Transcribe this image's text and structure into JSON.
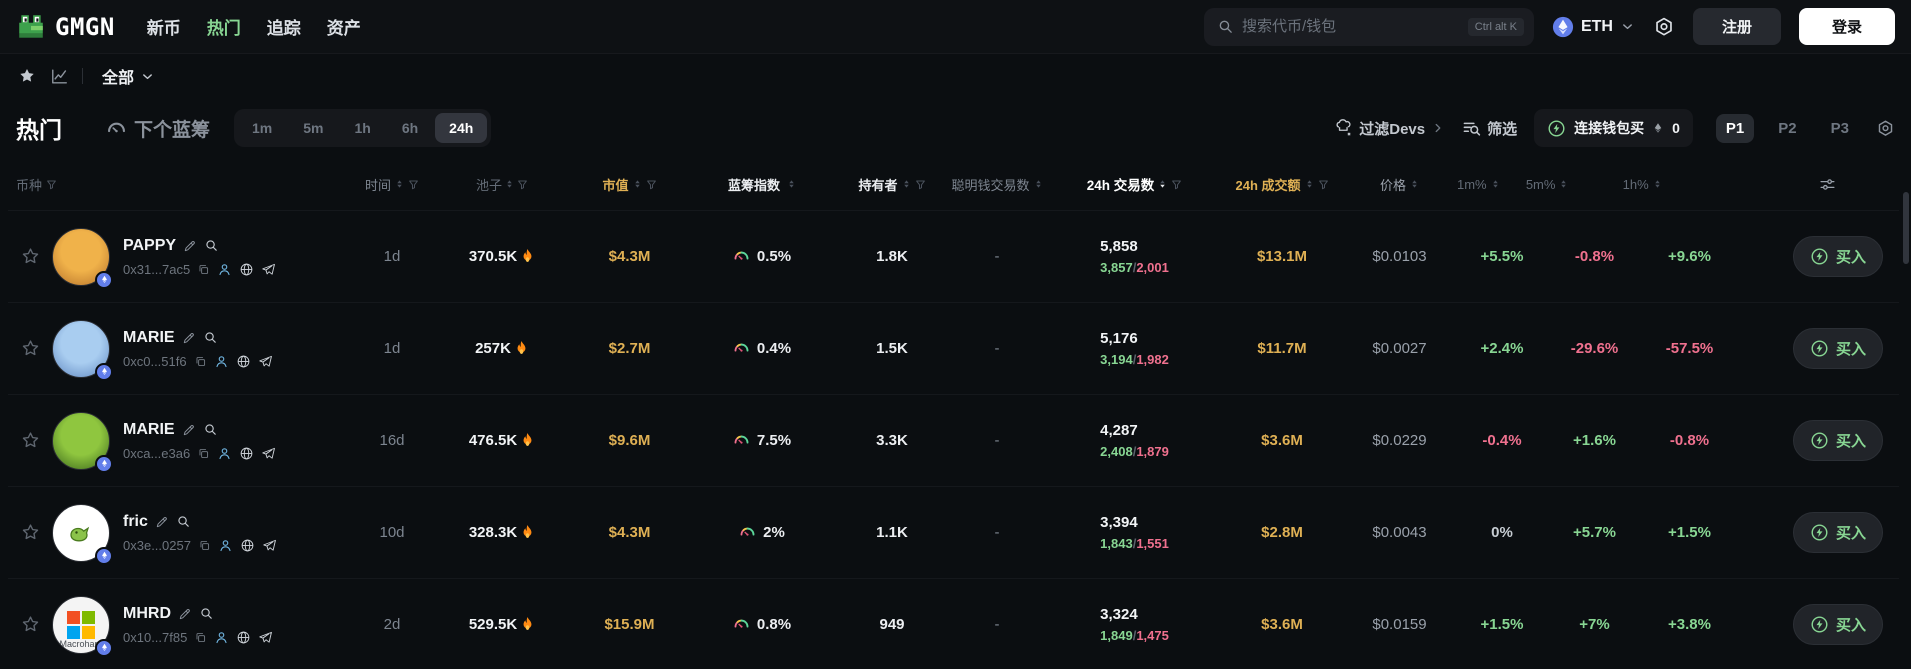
{
  "topbar": {
    "brand": "GMGN",
    "nav": [
      {
        "label": "新币",
        "active": false
      },
      {
        "label": "热门",
        "active": true
      },
      {
        "label": "追踪",
        "active": false
      },
      {
        "label": "资产",
        "active": false
      }
    ],
    "search": {
      "placeholder": "搜索代币/钱包",
      "shortcut": "Ctrl alt K"
    },
    "chain": {
      "label": "ETH"
    },
    "register_label": "注册",
    "login_label": "登录"
  },
  "filterbar": {
    "scope_label": "全部"
  },
  "toolbar": {
    "title": "热门",
    "next_bluechip": "下个蓝筹",
    "timeframes": [
      "1m",
      "5m",
      "1h",
      "6h",
      "24h"
    ],
    "active_timeframe": "24h",
    "filter_devs": "过滤Devs",
    "filter": "筛选",
    "connect_buy": "连接钱包买",
    "connect_amount": "0",
    "presets": [
      "P1",
      "P2",
      "P3"
    ],
    "active_preset": "P1"
  },
  "table": {
    "buy_label": "买入",
    "headers": [
      {
        "key": "token",
        "label": "币种",
        "funnel": true
      },
      {
        "key": "time",
        "label": "时间",
        "sort": true,
        "funnel": true
      },
      {
        "key": "pool",
        "label": "池子",
        "sort": true,
        "funnel": true
      },
      {
        "key": "mcap",
        "label": "市值",
        "sort": true,
        "funnel": true
      },
      {
        "key": "bluechip",
        "label": "蓝筹指数",
        "sort": true
      },
      {
        "key": "holders",
        "label": "持有者",
        "sort": true,
        "funnel": true
      },
      {
        "key": "smart",
        "label": "聪明钱交易数",
        "sort": true
      },
      {
        "key": "txs",
        "label": "24h 交易数",
        "sort": true,
        "funnel": true,
        "active": true
      },
      {
        "key": "vol",
        "label": "24h 成交额",
        "sort": true,
        "funnel": true
      },
      {
        "key": "price",
        "label": "价格",
        "sort": true
      },
      {
        "key": "m1",
        "label": "1m%",
        "sort": true
      },
      {
        "key": "m5",
        "label": "5m%",
        "sort": true
      },
      {
        "key": "h1",
        "label": "1h%",
        "sort": true
      },
      {
        "key": "buy",
        "label": "",
        "settings_icon": true
      }
    ],
    "rows": [
      {
        "name": "PAPPY",
        "address": "0x31...7ac5",
        "age": "1d",
        "pool": "370.5K",
        "mcap": "$4.3M",
        "bluechip": "0.5%",
        "holders": "1.8K",
        "smart": "-",
        "txs": "5,858",
        "buys": "3,857",
        "sells": "2,001",
        "volume": "$13.1M",
        "price": "$0.0103",
        "m1": "+5.5%",
        "m5": "-0.8%",
        "h1": "+9.6%",
        "avatar": {
          "kind": "plain",
          "c1": "#f0b24a",
          "c2": "#b4702a"
        }
      },
      {
        "name": "MARIE",
        "address": "0xc0...51f6",
        "age": "1d",
        "pool": "257K",
        "mcap": "$2.7M",
        "bluechip": "0.4%",
        "holders": "1.5K",
        "smart": "-",
        "txs": "5,176",
        "buys": "3,194",
        "sells": "1,982",
        "volume": "$11.7M",
        "price": "$0.0027",
        "m1": "+2.4%",
        "m5": "-29.6%",
        "h1": "-57.5%",
        "avatar": {
          "kind": "plain",
          "c1": "#a9cdf0",
          "c2": "#5e86c0"
        }
      },
      {
        "name": "MARIE",
        "address": "0xca...e3a6",
        "age": "16d",
        "pool": "476.5K",
        "mcap": "$9.6M",
        "bluechip": "7.5%",
        "holders": "3.3K",
        "smart": "-",
        "txs": "4,287",
        "buys": "2,408",
        "sells": "1,879",
        "volume": "$3.6M",
        "price": "$0.0229",
        "m1": "-0.4%",
        "m5": "+1.6%",
        "h1": "-0.8%",
        "avatar": {
          "kind": "plain",
          "c1": "#8fc63f",
          "c2": "#38641a"
        }
      },
      {
        "name": "fric",
        "address": "0x3e...0257",
        "age": "10d",
        "pool": "328.3K",
        "mcap": "$4.3M",
        "bluechip": "2%",
        "holders": "1.1K",
        "smart": "-",
        "txs": "3,394",
        "buys": "1,843",
        "sells": "1,551",
        "volume": "$2.8M",
        "price": "$0.0043",
        "m1": "0%",
        "m5": "+5.7%",
        "h1": "+1.5%",
        "avatar": {
          "kind": "frog",
          "c1": "#ffffff",
          "frog": "#8bc34a",
          "frog_dark": "#4a7b1e"
        }
      },
      {
        "name": "MHRD",
        "address": "0x10...7f85",
        "age": "2d",
        "pool": "529.5K",
        "mcap": "$15.9M",
        "bluechip": "0.8%",
        "holders": "949",
        "smart": "-",
        "txs": "3,324",
        "buys": "1,849",
        "sells": "1,475",
        "volume": "$3.6M",
        "price": "$0.0159",
        "m1": "+1.5%",
        "m5": "+7%",
        "h1": "+3.8%",
        "avatar": {
          "kind": "windows",
          "c1": "#f4f4f4",
          "label": "Macrohard",
          "colors": [
            "#f25022",
            "#7fba00",
            "#00a4ef",
            "#ffb900"
          ]
        }
      }
    ]
  },
  "colors": {
    "positive_green": "#88d693",
    "negative_pink": "#f0718f",
    "money_yellow": "#dfb054",
    "chain_blue": "#627eea",
    "flame_orange": "#ff8a12",
    "background": "#0b0e11"
  }
}
